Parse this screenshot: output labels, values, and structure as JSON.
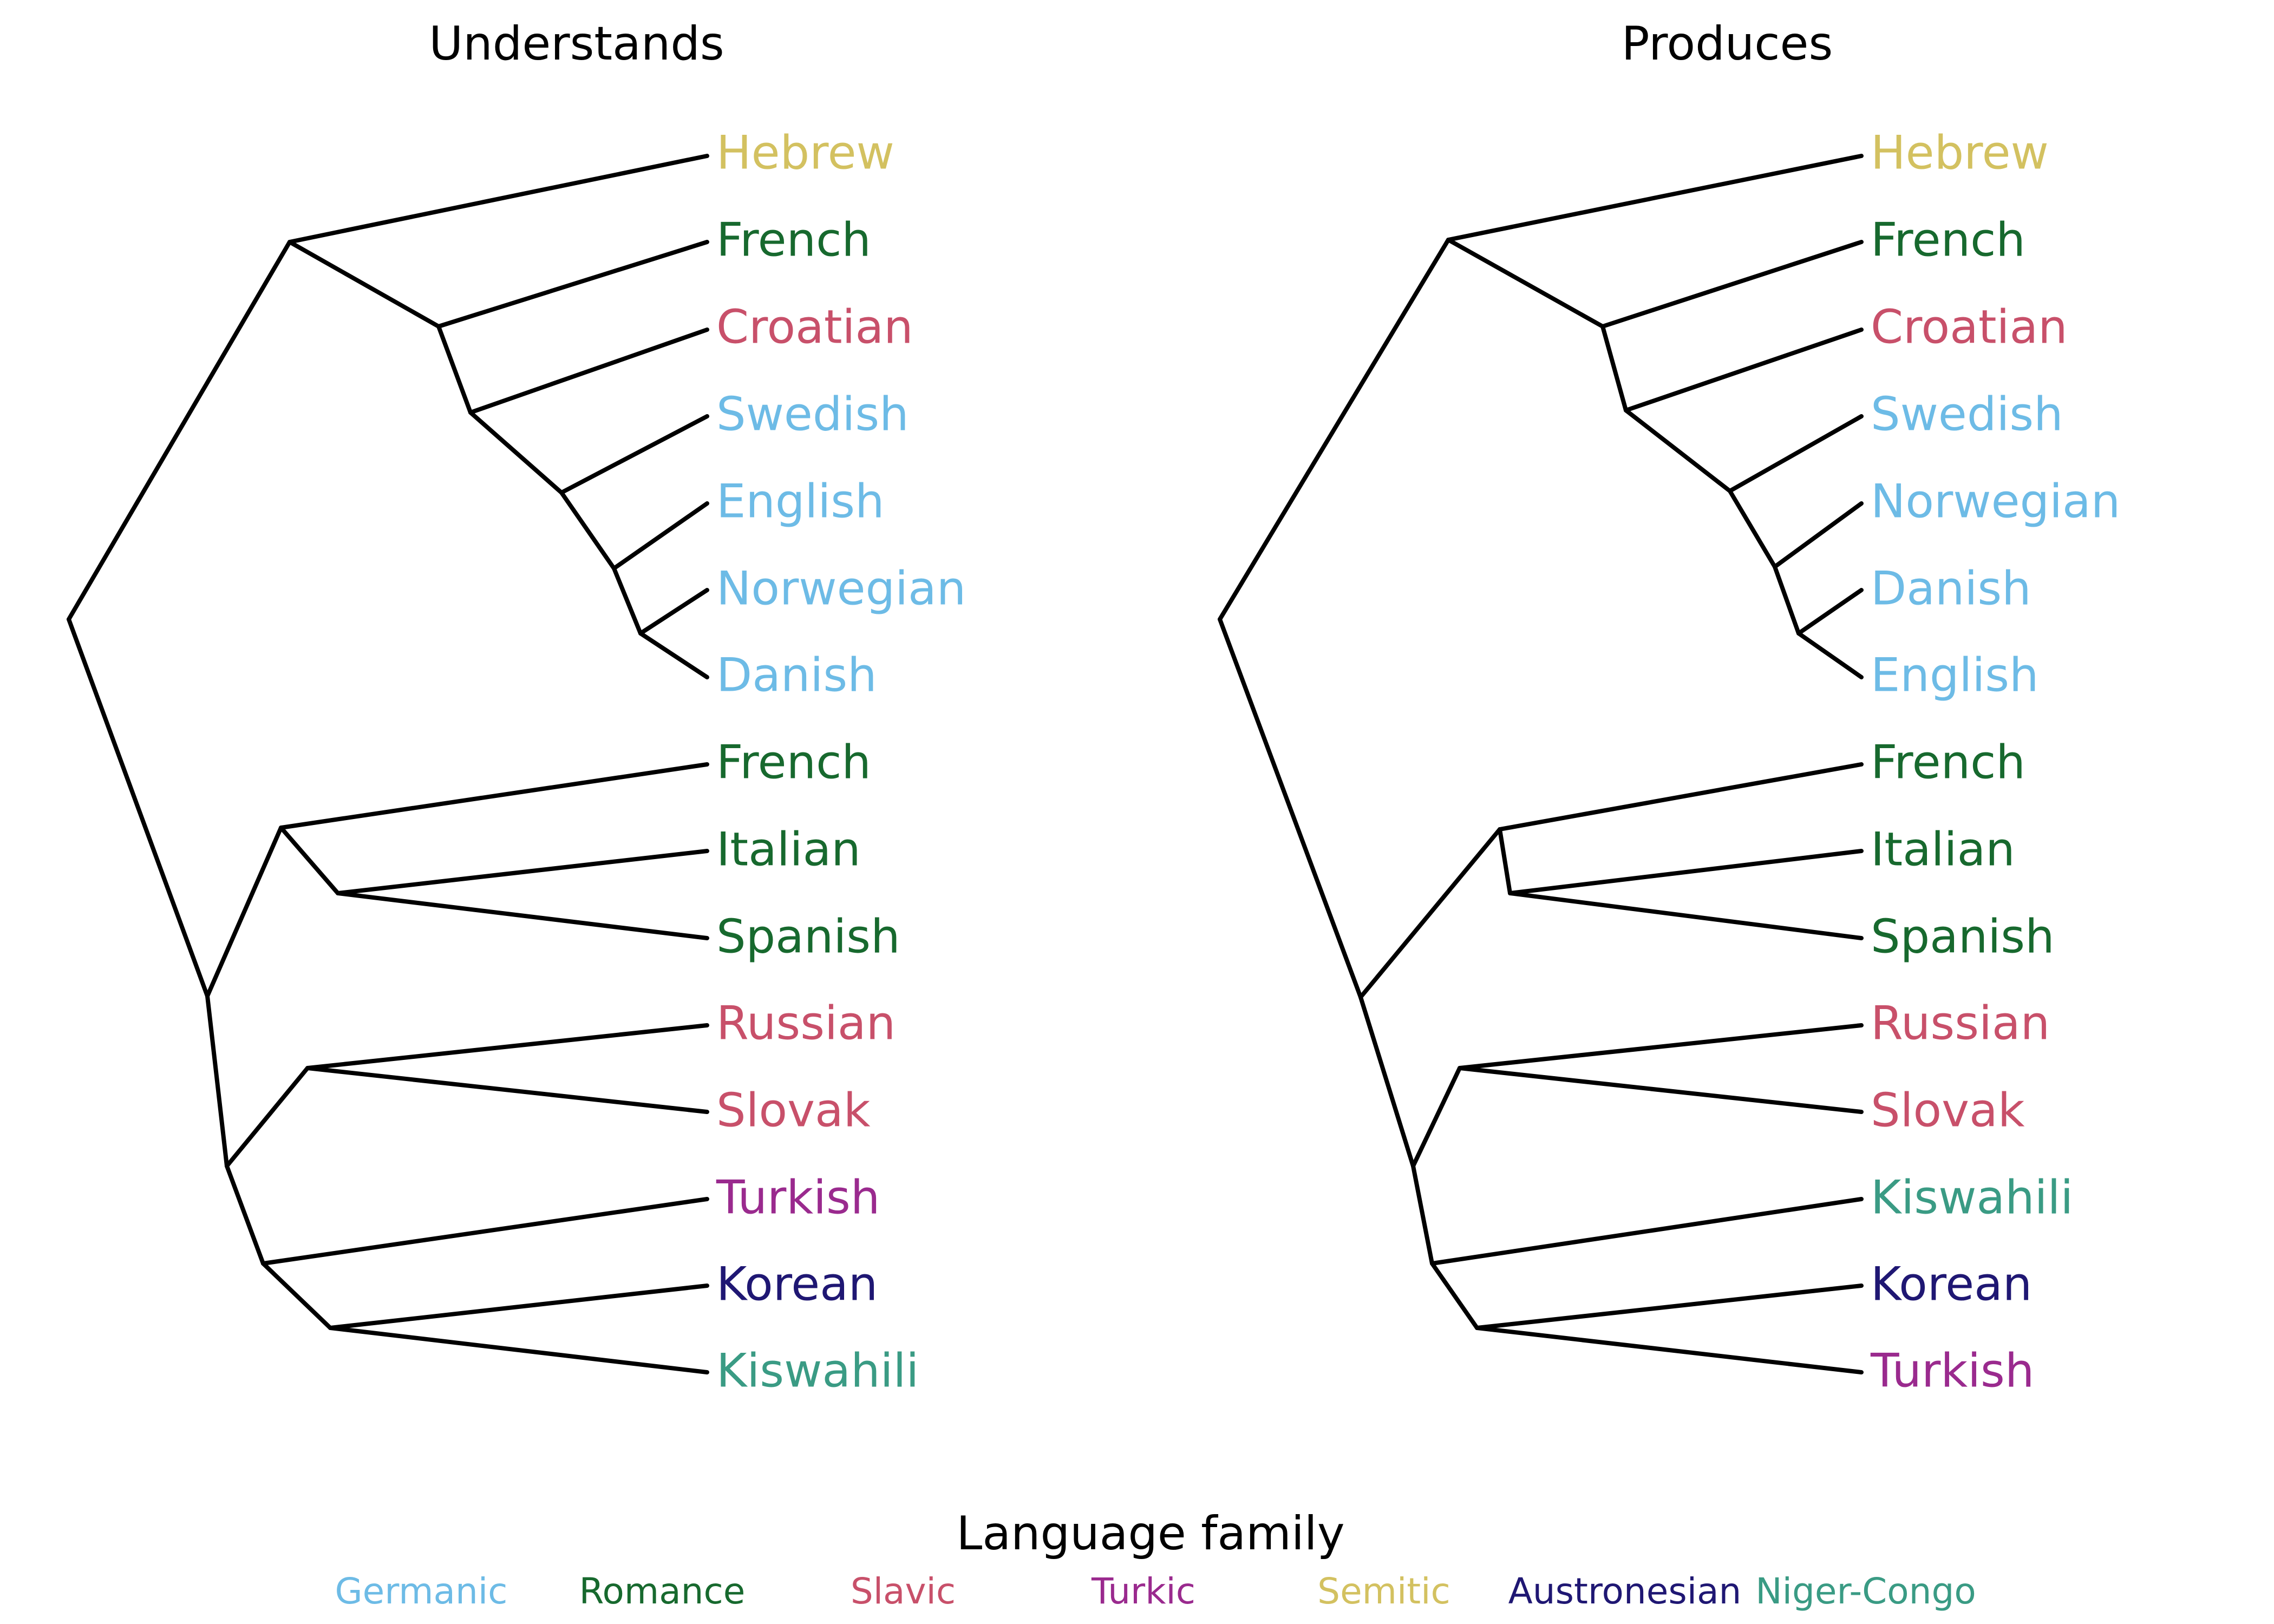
{
  "families": {
    "Germanic": "#6dbbe6",
    "Romance": "#17692e",
    "Slavic": "#c8506a",
    "Turkic": "#9a2a8e",
    "Semitic": "#d3c160",
    "Austronesian": "#1f1773",
    "Niger-Congo": "#3a9b84"
  },
  "panels": [
    {
      "title": "Understands",
      "leaves": [
        {
          "label": "Hebrew",
          "family": "Semitic"
        },
        {
          "label": "French",
          "family": "Romance"
        },
        {
          "label": "Croatian",
          "family": "Slavic"
        },
        {
          "label": "Swedish",
          "family": "Germanic"
        },
        {
          "label": "English",
          "family": "Germanic"
        },
        {
          "label": "Norwegian",
          "family": "Germanic"
        },
        {
          "label": "Danish",
          "family": "Germanic"
        },
        {
          "label": "French",
          "family": "Romance"
        },
        {
          "label": "Italian",
          "family": "Romance"
        },
        {
          "label": "Spanish",
          "family": "Romance"
        },
        {
          "label": "Russian",
          "family": "Slavic"
        },
        {
          "label": "Slovak",
          "family": "Slavic"
        },
        {
          "label": "Turkish",
          "family": "Turkic"
        },
        {
          "label": "Korean",
          "family": "Austronesian"
        },
        {
          "label": "Kiswahili",
          "family": "Niger-Congo"
        }
      ]
    },
    {
      "title": "Produces",
      "leaves": [
        {
          "label": "Hebrew",
          "family": "Semitic"
        },
        {
          "label": "French",
          "family": "Romance"
        },
        {
          "label": "Croatian",
          "family": "Slavic"
        },
        {
          "label": "Swedish",
          "family": "Germanic"
        },
        {
          "label": "Norwegian",
          "family": "Germanic"
        },
        {
          "label": "Danish",
          "family": "Germanic"
        },
        {
          "label": "English",
          "family": "Germanic"
        },
        {
          "label": "French",
          "family": "Romance"
        },
        {
          "label": "Italian",
          "family": "Romance"
        },
        {
          "label": "Spanish",
          "family": "Romance"
        },
        {
          "label": "Russian",
          "family": "Slavic"
        },
        {
          "label": "Slovak",
          "family": "Slavic"
        },
        {
          "label": "Kiswahili",
          "family": "Niger-Congo"
        },
        {
          "label": "Korean",
          "family": "Austronesian"
        },
        {
          "label": "Turkish",
          "family": "Turkic"
        }
      ]
    }
  ],
  "legend": {
    "title": "Language family",
    "items": [
      "Germanic",
      "Romance",
      "Slavic",
      "Turkic",
      "Semitic",
      "Austronesian",
      "Niger-Congo"
    ]
  }
}
